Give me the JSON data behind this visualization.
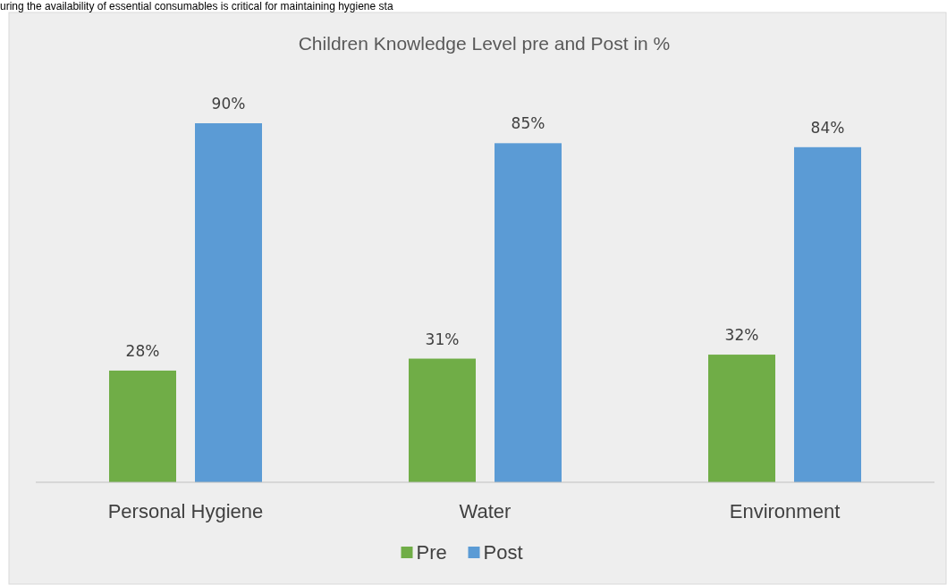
{
  "chart_data": {
    "type": "bar",
    "title": "Children Knowledge Level pre and Post in %",
    "annotations": [
      "uring the availability of essential consumables is critical for maintaining hygiene sta"
    ],
    "categories": [
      "Personal Hygiene",
      "Water",
      "Environment"
    ],
    "series": [
      {
        "name": "Pre",
        "color": "#70ad47",
        "values": [
          28,
          31,
          32
        ],
        "value_labels": [
          "28%",
          "31%",
          "32%"
        ]
      },
      {
        "name": "Post",
        "color": "#5b9bd5",
        "values": [
          90,
          85,
          84
        ],
        "value_labels": [
          "90%",
          "85%",
          "84%"
        ]
      }
    ],
    "legend": "bottom",
    "grid": false
  }
}
